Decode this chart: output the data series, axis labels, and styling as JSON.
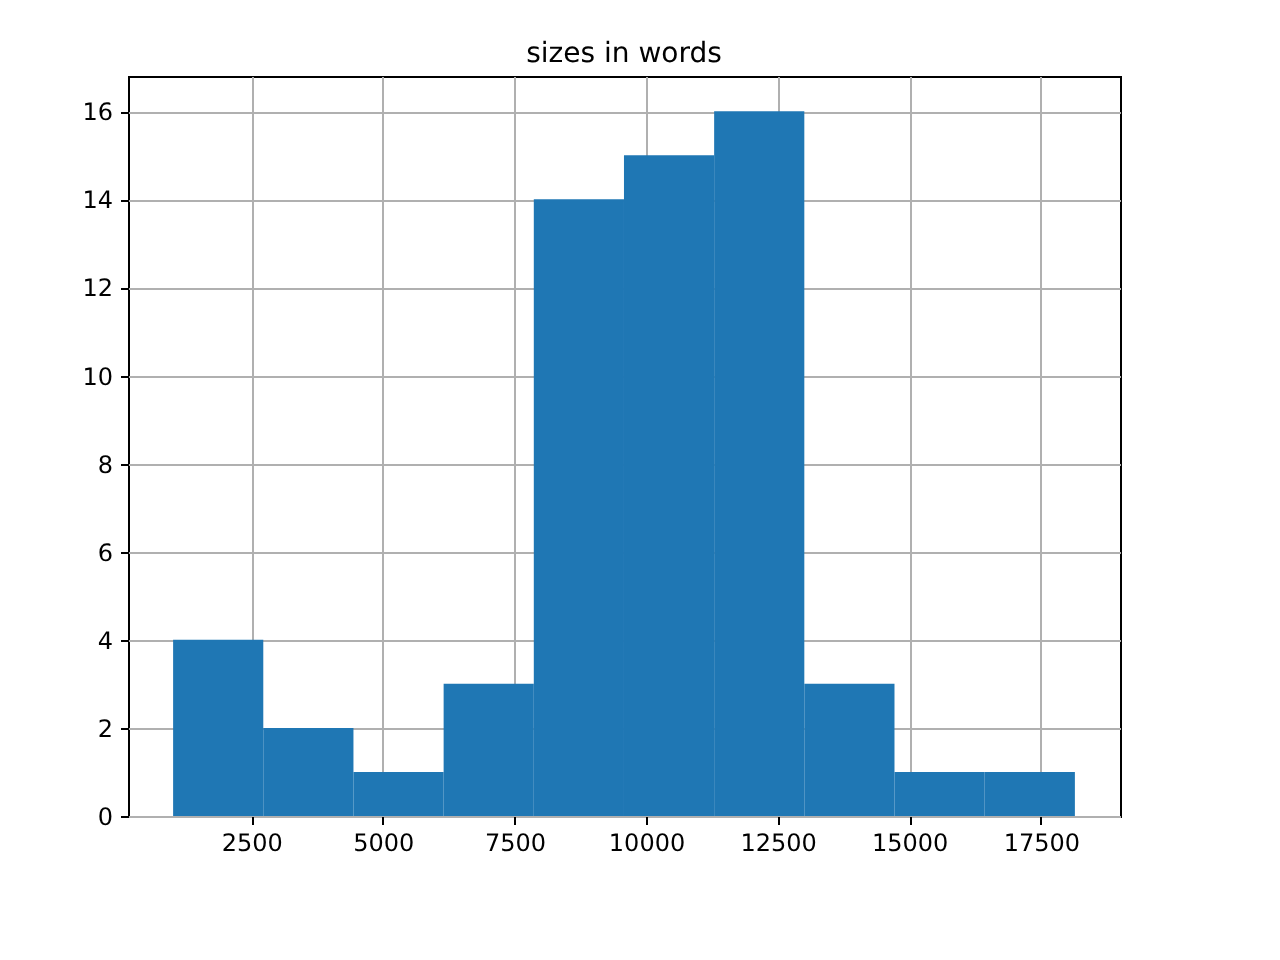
{
  "chart_data": {
    "type": "histogram",
    "title": "sizes in words",
    "bins": [
      1016,
      2729,
      4442,
      6155,
      7868,
      9581,
      11294,
      13007,
      14720,
      16433,
      18147
    ],
    "values": [
      4,
      2,
      1,
      3,
      14,
      15,
      16,
      3,
      1,
      1
    ],
    "color": "#1f77b4",
    "xlim": [
      159,
      19004
    ],
    "xticks": [
      2500,
      5000,
      7500,
      10000,
      12500,
      15000,
      17500
    ],
    "ylim": [
      0,
      16.8
    ],
    "yticks": [
      0,
      2,
      4,
      6,
      8,
      10,
      12,
      14,
      16
    ],
    "grid": true
  }
}
